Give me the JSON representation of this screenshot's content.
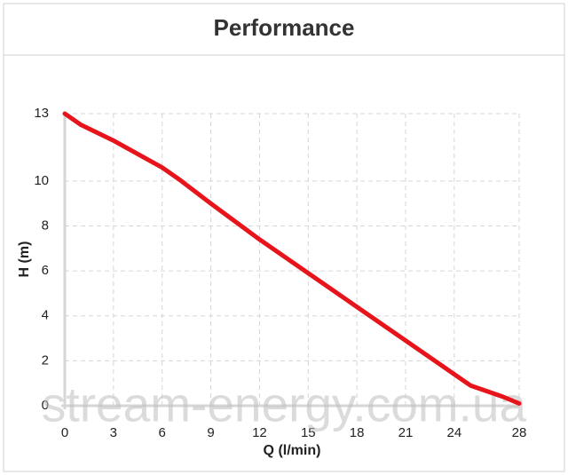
{
  "chart_data": {
    "type": "line",
    "title": "Performance",
    "x_label": "Q (l/min)",
    "y_label": "H (m)",
    "x": [
      0,
      1,
      3,
      6,
      7,
      9,
      12,
      15,
      18,
      21,
      24,
      25,
      27,
      28
    ],
    "series": [
      {
        "name": "H",
        "color": "#e8141b",
        "values": [
          13,
          12.5,
          11.8,
          10.6,
          10.1,
          9,
          7.4,
          5.9,
          4.4,
          2.9,
          1.4,
          0.9,
          0.4,
          0.1
        ]
      }
    ],
    "xlim": [
      0,
      28
    ],
    "xticks": [
      0,
      3,
      6,
      9,
      12,
      15,
      18,
      21,
      24,
      28
    ],
    "ylim": [
      0,
      13
    ],
    "yticks": [
      0,
      2,
      4,
      6,
      8,
      10,
      13
    ],
    "grid": true,
    "watermark": "stream-energy.com.ua"
  }
}
